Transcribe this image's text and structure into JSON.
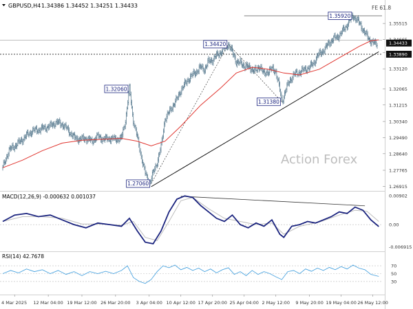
{
  "header": {
    "symbol_label": "GBPUSD,H4",
    "ohlc": "1.34386 1.34452 1.34251 1.34433"
  },
  "watermark": "Action Forex",
  "fe_label": "FE 61.8",
  "price_panel": {
    "ylim": [
      1.2675,
      1.361
    ],
    "ticks": [
      "1.35515",
      "1.34665",
      "1.33970",
      "1.33120",
      "1.32065",
      "1.31215",
      "1.30340",
      "1.29490",
      "1.28640",
      "1.27765",
      "1.26915"
    ],
    "current_price": "1.34433",
    "support_price": "1.33890",
    "horizontal_levels": {
      "fe": 1.3592,
      "resistance": 1.3463,
      "support": 1.3389
    },
    "annotations": [
      {
        "label": "1.27060",
        "x": 75,
        "price": 1.2706
      },
      {
        "label": "1.32060",
        "x": 64,
        "price": 1.3206
      },
      {
        "label": "1.34420",
        "x": 114,
        "price": 1.3442
      },
      {
        "label": "1.31380",
        "x": 141,
        "price": 1.3138
      },
      {
        "label": "1.35920",
        "x": 177,
        "price": 1.3592
      }
    ],
    "trendline": {
      "from": {
        "x": 75,
        "price": 1.269
      },
      "to": {
        "x": 190,
        "price": 1.3402
      }
    },
    "fib_dotted": [
      [
        75,
        1.2706
      ],
      [
        114,
        1.3442
      ],
      [
        141,
        1.3138
      ]
    ]
  },
  "macd_panel": {
    "label": "MACD(12,26,9) -0.000632 0.001037",
    "ylim": [
      -0.0075,
      0.0095
    ],
    "ticks": [
      "0.00902",
      "0.00",
      "-0.006915"
    ],
    "values": {
      "macd": -0.000632,
      "signal": 0.001037
    },
    "divergence_line": {
      "from": {
        "x": 90,
        "value": 0.0089
      },
      "to": {
        "x": 183,
        "value": 0.0059
      }
    }
  },
  "rsi_panel": {
    "label": "RSI(14) 42.7678",
    "ylim": [
      0,
      100
    ],
    "ticks": [
      "70",
      "50",
      "30"
    ],
    "value": 42.7678
  },
  "x_axis": {
    "ticks": [
      {
        "label": "4 Mar 2025",
        "x": 6
      },
      {
        "label": "12 Mar 04:00",
        "x": 23
      },
      {
        "label": "19 Mar 12:00",
        "x": 40
      },
      {
        "label": "26 Mar 20:00",
        "x": 57
      },
      {
        "label": "3 Apr 04:00",
        "x": 74
      },
      {
        "label": "10 Apr 12:00",
        "x": 90
      },
      {
        "label": "17 Apr 20:00",
        "x": 106
      },
      {
        "label": "25 Apr 04:00",
        "x": 122
      },
      {
        "label": "2 May 12:00",
        "x": 138
      },
      {
        "label": "9 May 20:00",
        "x": 155
      },
      {
        "label": "19 May 04:00",
        "x": 171
      },
      {
        "label": "26 May 12:00",
        "x": 187
      }
    ]
  },
  "colors": {
    "candle": "#4a6f86",
    "ma": "#e0342e",
    "macd": "#1a237e",
    "signal": "#bdbdbd",
    "rsi": "#4aa3df",
    "support_box": "#000000",
    "label_border": "#1a237e"
  },
  "chart_data": [
    {
      "type": "candlestick",
      "title": "GBPUSD,H4",
      "x_range": [
        0,
        192
      ],
      "ylim": [
        1.2675,
        1.361
      ],
      "series": [
        {
          "name": "close",
          "values": [
            [
              0,
              1.279
            ],
            [
              3,
              1.288
            ],
            [
              6,
              1.2905
            ],
            [
              9,
              1.293
            ],
            [
              12,
              1.296
            ],
            [
              15,
              1.2985
            ],
            [
              18,
              1.299
            ],
            [
              21,
              1.3
            ],
            [
              24,
              1.301
            ],
            [
              27,
              1.303
            ],
            [
              30,
              1.302
            ],
            [
              33,
              1.299
            ],
            [
              36,
              1.295
            ],
            [
              39,
              1.294
            ],
            [
              42,
              1.2945
            ],
            [
              45,
              1.293
            ],
            [
              48,
              1.2955
            ],
            [
              51,
              1.294
            ],
            [
              54,
              1.2945
            ],
            [
              57,
              1.294
            ],
            [
              60,
              1.2945
            ],
            [
              62,
              1.304
            ],
            [
              64,
              1.3206
            ],
            [
              66,
              1.304
            ],
            [
              68,
              1.295
            ],
            [
              70,
              1.285
            ],
            [
              72,
              1.276
            ],
            [
              74,
              1.2706
            ],
            [
              76,
              1.276
            ],
            [
              78,
              1.282
            ],
            [
              80,
              1.29
            ],
            [
              82,
              1.305
            ],
            [
              84,
              1.308
            ],
            [
              86,
              1.312
            ],
            [
              88,
              1.315
            ],
            [
              90,
              1.32
            ],
            [
              92,
              1.323
            ],
            [
              94,
              1.326
            ],
            [
              96,
              1.328
            ],
            [
              98,
              1.33
            ],
            [
              100,
              1.332
            ],
            [
              102,
              1.331
            ],
            [
              104,
              1.335
            ],
            [
              106,
              1.336
            ],
            [
              108,
              1.338
            ],
            [
              110,
              1.34
            ],
            [
              112,
              1.342
            ],
            [
              114,
              1.3442
            ],
            [
              116,
              1.34
            ],
            [
              118,
              1.335
            ],
            [
              120,
              1.334
            ],
            [
              122,
              1.333
            ],
            [
              124,
              1.332
            ],
            [
              126,
              1.331
            ],
            [
              128,
              1.33
            ],
            [
              130,
              1.333
            ],
            [
              132,
              1.328
            ],
            [
              134,
              1.33
            ],
            [
              136,
              1.331
            ],
            [
              138,
              1.33
            ],
            [
              140,
              1.32
            ],
            [
              141,
              1.3138
            ],
            [
              143,
              1.32
            ],
            [
              145,
              1.325
            ],
            [
              147,
              1.328
            ],
            [
              149,
              1.329
            ],
            [
              151,
              1.33
            ],
            [
              153,
              1.331
            ],
            [
              155,
              1.332
            ],
            [
              157,
              1.334
            ],
            [
              159,
              1.338
            ],
            [
              161,
              1.34
            ],
            [
              163,
              1.342
            ],
            [
              165,
              1.345
            ],
            [
              167,
              1.347
            ],
            [
              169,
              1.348
            ],
            [
              171,
              1.35
            ],
            [
              173,
              1.353
            ],
            [
              175,
              1.356
            ],
            [
              177,
              1.3592
            ],
            [
              179,
              1.357
            ],
            [
              181,
              1.354
            ],
            [
              183,
              1.35
            ],
            [
              185,
              1.347
            ],
            [
              187,
              1.345
            ],
            [
              189,
              1.3443
            ]
          ]
        },
        {
          "name": "moving average",
          "values": [
            [
              0,
              1.279
            ],
            [
              10,
              1.283
            ],
            [
              20,
              1.288
            ],
            [
              30,
              1.292
            ],
            [
              40,
              1.2935
            ],
            [
              50,
              1.294
            ],
            [
              60,
              1.2945
            ],
            [
              68,
              1.293
            ],
            [
              75,
              1.2905
            ],
            [
              82,
              1.293
            ],
            [
              90,
              1.301
            ],
            [
              100,
              1.312
            ],
            [
              110,
              1.321
            ],
            [
              118,
              1.329
            ],
            [
              126,
              1.332
            ],
            [
              134,
              1.331
            ],
            [
              142,
              1.329
            ],
            [
              150,
              1.328
            ],
            [
              160,
              1.331
            ],
            [
              170,
              1.337
            ],
            [
              180,
              1.343
            ],
            [
              186,
              1.346
            ],
            [
              190,
              1.3465
            ]
          ]
        }
      ]
    },
    {
      "type": "line",
      "title": "MACD(12,26,9) -0.000632 0.001037",
      "ylim": [
        -0.0075,
        0.0095
      ],
      "series": [
        {
          "name": "MACD",
          "values": [
            [
              0,
              0.001
            ],
            [
              6,
              0.003
            ],
            [
              12,
              0.0035
            ],
            [
              18,
              0.0025
            ],
            [
              24,
              0.003
            ],
            [
              30,
              0.0015
            ],
            [
              36,
              0.0
            ],
            [
              42,
              -0.001
            ],
            [
              48,
              0.0005
            ],
            [
              54,
              0.0
            ],
            [
              60,
              -0.0005
            ],
            [
              64,
              0.002
            ],
            [
              68,
              -0.002
            ],
            [
              72,
              -0.0055
            ],
            [
              76,
              -0.006
            ],
            [
              80,
              -0.002
            ],
            [
              84,
              0.004
            ],
            [
              88,
              0.008
            ],
            [
              92,
              0.009
            ],
            [
              96,
              0.0085
            ],
            [
              100,
              0.006
            ],
            [
              104,
              0.004
            ],
            [
              108,
              0.002
            ],
            [
              112,
              0.001
            ],
            [
              116,
              0.003
            ],
            [
              120,
              0.0
            ],
            [
              124,
              -0.001
            ],
            [
              128,
              0.0005
            ],
            [
              132,
              -0.0005
            ],
            [
              136,
              0.0015
            ],
            [
              140,
              -0.003
            ],
            [
              142,
              -0.004
            ],
            [
              146,
              -0.0005
            ],
            [
              150,
              0.0
            ],
            [
              154,
              0.001
            ],
            [
              158,
              0.0005
            ],
            [
              162,
              0.0015
            ],
            [
              166,
              0.0025
            ],
            [
              170,
              0.004
            ],
            [
              174,
              0.0035
            ],
            [
              178,
              0.0055
            ],
            [
              182,
              0.0045
            ],
            [
              186,
              0.0015
            ],
            [
              190,
              -0.0006
            ]
          ]
        },
        {
          "name": "Signal",
          "values": [
            [
              0,
              0.001
            ],
            [
              10,
              0.0025
            ],
            [
              20,
              0.0025
            ],
            [
              30,
              0.002
            ],
            [
              40,
              0.0002
            ],
            [
              50,
              0.0002
            ],
            [
              60,
              -0.0002
            ],
            [
              66,
              0.001
            ],
            [
              72,
              -0.004
            ],
            [
              78,
              -0.005
            ],
            [
              84,
              0.001
            ],
            [
              90,
              0.0075
            ],
            [
              96,
              0.0085
            ],
            [
              104,
              0.005
            ],
            [
              112,
              0.002
            ],
            [
              120,
              0.001
            ],
            [
              128,
              0.0
            ],
            [
              136,
              0.0005
            ],
            [
              142,
              -0.003
            ],
            [
              150,
              -0.0005
            ],
            [
              160,
              0.0008
            ],
            [
              170,
              0.003
            ],
            [
              178,
              0.0045
            ],
            [
              184,
              0.0042
            ],
            [
              190,
              0.001
            ]
          ]
        }
      ]
    },
    {
      "type": "line",
      "title": "RSI(14) 42.7678",
      "ylim": [
        0,
        100
      ],
      "series": [
        {
          "name": "RSI",
          "values": [
            [
              0,
              50
            ],
            [
              4,
              58
            ],
            [
              8,
              52
            ],
            [
              12,
              62
            ],
            [
              16,
              55
            ],
            [
              20,
              60
            ],
            [
              24,
              50
            ],
            [
              28,
              58
            ],
            [
              32,
              48
            ],
            [
              36,
              55
            ],
            [
              40,
              45
            ],
            [
              44,
              55
            ],
            [
              48,
              50
            ],
            [
              52,
              56
            ],
            [
              56,
              50
            ],
            [
              60,
              58
            ],
            [
              63,
              70
            ],
            [
              66,
              40
            ],
            [
              69,
              30
            ],
            [
              72,
              25
            ],
            [
              75,
              35
            ],
            [
              78,
              55
            ],
            [
              81,
              70
            ],
            [
              84,
              65
            ],
            [
              87,
              72
            ],
            [
              90,
              60
            ],
            [
              93,
              66
            ],
            [
              96,
              58
            ],
            [
              99,
              64
            ],
            [
              102,
              55
            ],
            [
              105,
              62
            ],
            [
              108,
              52
            ],
            [
              111,
              60
            ],
            [
              114,
              65
            ],
            [
              117,
              48
            ],
            [
              120,
              55
            ],
            [
              123,
              45
            ],
            [
              126,
              58
            ],
            [
              129,
              48
            ],
            [
              132,
              55
            ],
            [
              135,
              50
            ],
            [
              138,
              42
            ],
            [
              141,
              35
            ],
            [
              144,
              55
            ],
            [
              147,
              58
            ],
            [
              150,
              50
            ],
            [
              153,
              62
            ],
            [
              156,
              56
            ],
            [
              159,
              64
            ],
            [
              162,
              58
            ],
            [
              165,
              66
            ],
            [
              168,
              60
            ],
            [
              171,
              68
            ],
            [
              174,
              62
            ],
            [
              177,
              72
            ],
            [
              180,
              64
            ],
            [
              183,
              60
            ],
            [
              186,
              48
            ],
            [
              190,
              43
            ]
          ]
        }
      ]
    }
  ]
}
